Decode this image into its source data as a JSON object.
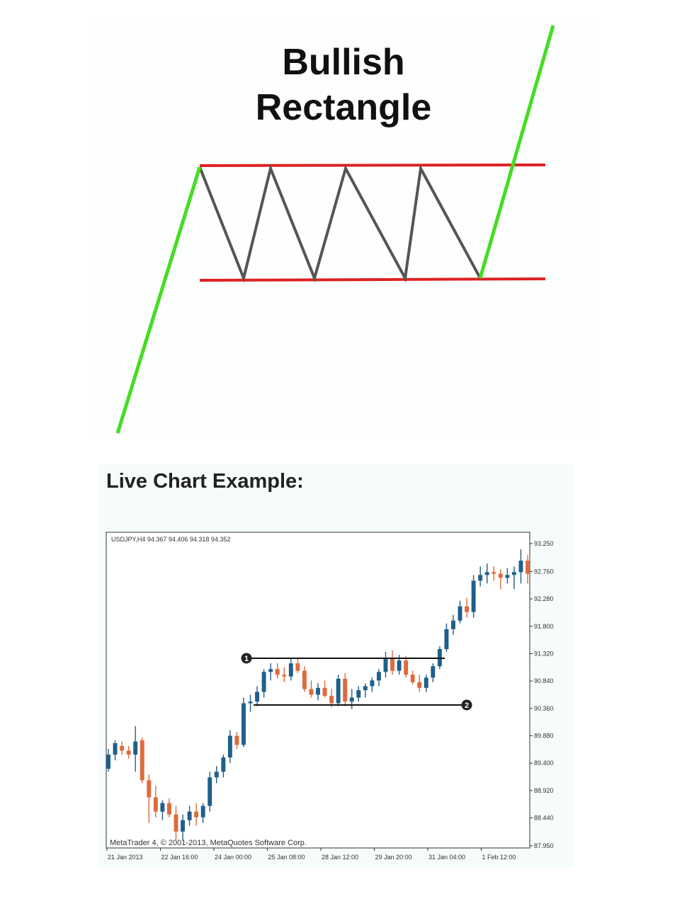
{
  "diagram": {
    "title_line_1": "Bullish",
    "title_line_2": "Rectangle",
    "colors": {
      "trend": "#44dd22",
      "boundary": "#dd2222",
      "zigzag": "#555555"
    }
  },
  "example": {
    "label": "Live Chart Example:"
  },
  "chart_data": {
    "type": "candlestick",
    "header": "USDJPY,H4  94.367 94.406 94.318 94.352",
    "footer": "MetaTrader 4, © 2001-2013, MetaQuotes Software Corp.",
    "ylim": [
      87.75,
      93.5
    ],
    "y_ticks": [
      "93.250",
      "92.760",
      "92.280",
      "91.800",
      "91.320",
      "90.840",
      "90.360",
      "89.880",
      "89.400",
      "88.920",
      "88.440",
      "87.950"
    ],
    "x_ticks": [
      "21 Jan 2013",
      "22 Jan 16:00",
      "24 Jan 00:00",
      "25 Jan 08:00",
      "28 Jan 12:00",
      "29 Jan 20:00",
      "31 Jan 04:00",
      "1 Feb 12:00"
    ],
    "colors": {
      "up": "#1f5f8b",
      "down": "#e06a3c",
      "line": "#111111"
    },
    "resistance": {
      "value": 91.24,
      "label": "1"
    },
    "support": {
      "value": 90.42,
      "label": "2"
    },
    "candles": [
      [
        89.3,
        89.65,
        89.25,
        89.55
      ],
      [
        89.55,
        89.8,
        89.45,
        89.75
      ],
      [
        89.7,
        89.78,
        89.55,
        89.62
      ],
      [
        89.62,
        89.7,
        89.48,
        89.55
      ],
      [
        89.55,
        90.05,
        89.25,
        89.78
      ],
      [
        89.8,
        89.85,
        89.05,
        89.1
      ],
      [
        89.1,
        89.2,
        88.35,
        88.8
      ],
      [
        88.8,
        89.0,
        88.45,
        88.55
      ],
      [
        88.55,
        88.75,
        88.4,
        88.7
      ],
      [
        88.7,
        88.78,
        88.45,
        88.5
      ],
      [
        88.5,
        88.65,
        88.05,
        88.2
      ],
      [
        88.2,
        88.5,
        88.05,
        88.4
      ],
      [
        88.4,
        88.65,
        88.3,
        88.55
      ],
      [
        88.55,
        88.7,
        88.3,
        88.45
      ],
      [
        88.45,
        88.7,
        88.35,
        88.65
      ],
      [
        88.65,
        89.25,
        88.55,
        89.15
      ],
      [
        89.15,
        89.35,
        89.05,
        89.25
      ],
      [
        89.25,
        89.55,
        89.15,
        89.5
      ],
      [
        89.5,
        89.98,
        89.4,
        89.88
      ],
      [
        89.88,
        89.95,
        89.65,
        89.72
      ],
      [
        89.72,
        90.55,
        89.68,
        90.45
      ],
      [
        90.45,
        90.6,
        90.3,
        90.48
      ],
      [
        90.48,
        90.75,
        90.4,
        90.65
      ],
      [
        90.65,
        91.05,
        90.55,
        91.0
      ],
      [
        91.0,
        91.15,
        90.85,
        91.05
      ],
      [
        91.05,
        91.15,
        90.88,
        90.95
      ],
      [
        90.95,
        91.08,
        90.82,
        90.92
      ],
      [
        90.92,
        91.25,
        90.85,
        91.15
      ],
      [
        91.15,
        91.25,
        90.98,
        91.02
      ],
      [
        91.02,
        91.1,
        90.65,
        90.7
      ],
      [
        90.7,
        90.85,
        90.55,
        90.6
      ],
      [
        90.6,
        90.8,
        90.5,
        90.72
      ],
      [
        90.72,
        90.85,
        90.55,
        90.58
      ],
      [
        90.58,
        90.7,
        90.38,
        90.45
      ],
      [
        90.45,
        90.95,
        90.4,
        90.88
      ],
      [
        90.88,
        90.98,
        90.4,
        90.48
      ],
      [
        90.48,
        90.7,
        90.35,
        90.55
      ],
      [
        90.55,
        90.75,
        90.48,
        90.68
      ],
      [
        90.68,
        90.8,
        90.55,
        90.75
      ],
      [
        90.75,
        90.9,
        90.65,
        90.85
      ],
      [
        90.85,
        91.05,
        90.75,
        91.0
      ],
      [
        91.0,
        91.35,
        90.9,
        91.25
      ],
      [
        91.25,
        91.38,
        90.95,
        91.02
      ],
      [
        91.02,
        91.3,
        90.95,
        91.2
      ],
      [
        91.2,
        91.28,
        90.9,
        90.95
      ],
      [
        90.95,
        91.02,
        90.78,
        90.82
      ],
      [
        90.82,
        90.95,
        90.65,
        90.72
      ],
      [
        90.72,
        90.95,
        90.65,
        90.9
      ],
      [
        90.9,
        91.15,
        90.82,
        91.1
      ],
      [
        91.1,
        91.45,
        91.05,
        91.4
      ],
      [
        91.4,
        91.85,
        91.35,
        91.75
      ],
      [
        91.75,
        92.0,
        91.65,
        91.9
      ],
      [
        91.9,
        92.25,
        91.85,
        92.15
      ],
      [
        92.15,
        92.3,
        91.95,
        92.05
      ],
      [
        92.05,
        92.7,
        91.95,
        92.6
      ],
      [
        92.6,
        92.85,
        92.5,
        92.7
      ],
      [
        92.7,
        92.9,
        92.55,
        92.75
      ],
      [
        92.75,
        92.85,
        92.6,
        92.72
      ],
      [
        92.72,
        92.8,
        92.45,
        92.65
      ],
      [
        92.65,
        92.82,
        92.55,
        92.7
      ],
      [
        92.7,
        92.85,
        92.45,
        92.75
      ],
      [
        92.75,
        93.15,
        92.55,
        92.95
      ],
      [
        92.95,
        93.05,
        92.55,
        92.72
      ]
    ]
  }
}
